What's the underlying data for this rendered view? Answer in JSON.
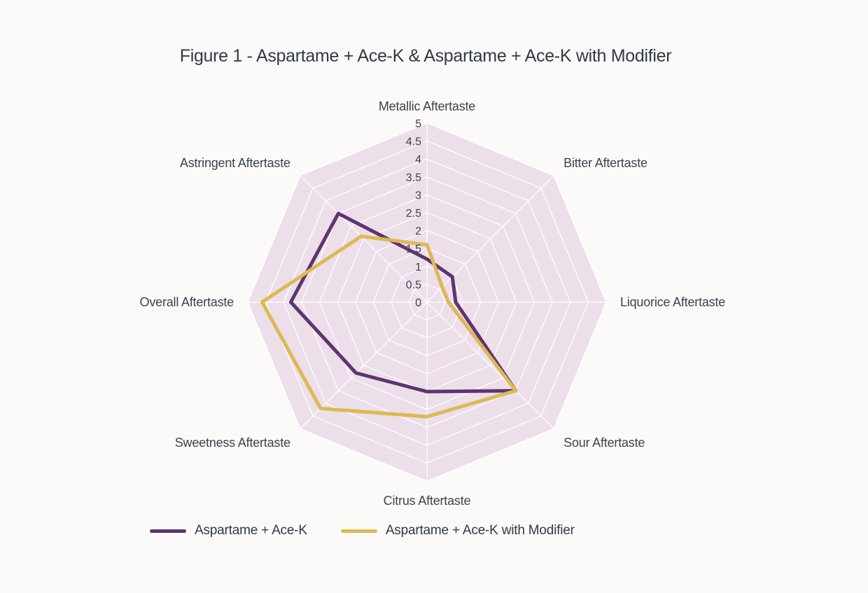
{
  "colors": {
    "background": "#fcfaf8",
    "radar_fill": "#ecdfea",
    "grid": "#ffffff",
    "series_1": "#5e3470",
    "series_2": "#dcb953"
  },
  "chart_data": {
    "type": "radar",
    "title": "Figure 1 - Aspartame + Ace-K & Aspartame + Ace-K with Modifier",
    "categories": [
      "Metallic Aftertaste",
      "Bitter Aftertaste",
      "Liquorice Aftertaste",
      "Sour Aftertaste",
      "Citrus Aftertaste",
      "Sweetness Aftertaste",
      "Overall Aftertaste",
      "Astringent Aftertaste"
    ],
    "ticks": [
      "0",
      "0.5",
      "1",
      "1.5",
      "2",
      "2.5",
      "3",
      "3.5",
      "4",
      "4.5",
      "5"
    ],
    "rlim": [
      0,
      5
    ],
    "series": [
      {
        "name": "Aspartame + Ace-K",
        "values": [
          1.2,
          1.0,
          0.8,
          3.5,
          2.5,
          2.8,
          3.8,
          3.5
        ]
      },
      {
        "name": "Aspartame + Ace-K with Modifier",
        "values": [
          1.6,
          0.6,
          0.6,
          3.5,
          3.2,
          4.2,
          4.6,
          2.6
        ]
      }
    ],
    "grid": true,
    "legend_position": "bottom"
  }
}
